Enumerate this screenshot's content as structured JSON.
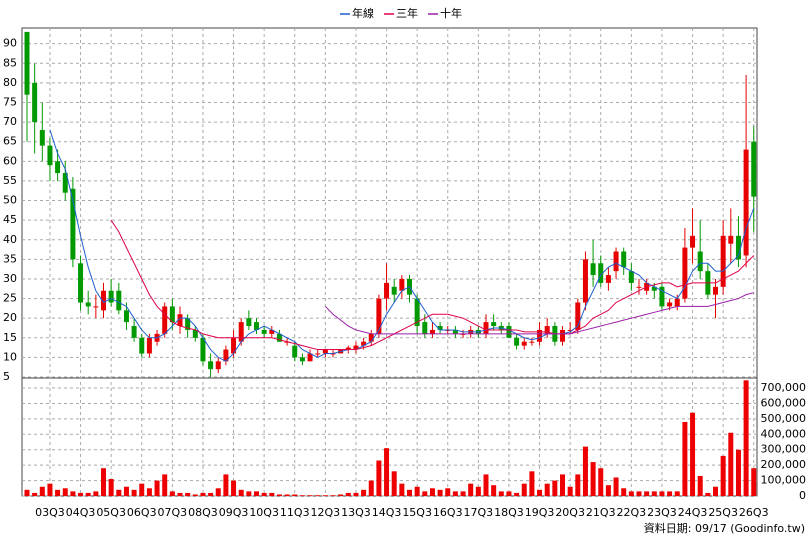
{
  "chart_data": {
    "type": "candlestick",
    "categories": [
      null,
      null,
      null,
      "03Q3",
      null,
      null,
      null,
      "04Q3",
      null,
      null,
      null,
      "05Q3",
      null,
      null,
      null,
      "06Q3",
      null,
      null,
      null,
      "07Q3",
      null,
      null,
      null,
      "08Q3",
      null,
      null,
      null,
      "09Q3",
      null,
      null,
      null,
      "10Q3",
      null,
      null,
      null,
      "11Q3",
      null,
      null,
      null,
      "12Q3",
      null,
      null,
      null,
      "13Q3",
      null,
      null,
      null,
      "14Q3",
      null,
      null,
      null,
      "15Q3",
      null,
      null,
      null,
      "16Q3",
      null,
      null,
      null,
      "17Q3",
      null,
      null,
      null,
      "18Q3",
      null,
      null,
      null,
      "19Q3",
      null,
      null,
      null,
      "20Q3",
      null,
      null,
      null,
      "21Q3",
      null,
      null,
      null,
      "22Q3",
      null,
      null,
      null,
      "23Q3",
      null,
      null,
      null,
      "24Q3",
      null,
      null,
      null,
      "25Q3",
      null,
      null,
      null,
      "26Q3"
    ],
    "open": [
      93,
      80,
      68,
      64,
      60,
      57,
      53,
      34,
      24,
      23,
      22,
      27,
      27,
      22,
      18,
      15,
      11,
      14,
      16,
      23,
      18,
      20,
      17,
      15,
      9,
      7,
      9,
      11,
      14,
      20,
      19,
      17,
      16,
      16,
      14,
      13,
      10,
      9,
      11,
      11,
      11,
      11,
      12,
      12,
      13,
      14,
      16,
      25,
      28,
      27,
      30,
      25,
      19,
      16,
      18,
      17,
      17,
      16,
      16,
      17,
      16,
      19,
      18,
      18,
      15,
      13,
      14,
      14,
      16,
      18,
      14,
      17,
      17,
      24,
      34,
      34,
      29,
      32,
      37,
      32,
      28,
      27,
      28,
      28,
      23,
      23,
      25,
      38,
      37,
      32,
      26,
      28,
      39,
      41,
      36,
      65
    ],
    "high": [
      93,
      85,
      75,
      66,
      63,
      60,
      56,
      36,
      27,
      26,
      29,
      30,
      29,
      24,
      20,
      16,
      16,
      17,
      24,
      25,
      23,
      21,
      18,
      16,
      11,
      10,
      13,
      17,
      20,
      22,
      20,
      18,
      18,
      17,
      15,
      14,
      11,
      12,
      12,
      12,
      12,
      12,
      13,
      14,
      15,
      17,
      26,
      34,
      30,
      31,
      31,
      26,
      21,
      19,
      19,
      18,
      18,
      17,
      18,
      18,
      21,
      21,
      19,
      19,
      16,
      15,
      15,
      19,
      20,
      19,
      18,
      19,
      25,
      37,
      40,
      36,
      33,
      38,
      38,
      34,
      30,
      30,
      29,
      29,
      25,
      26,
      43,
      48,
      45,
      34,
      30,
      45,
      48,
      46,
      82,
      69
    ],
    "low": [
      65,
      62,
      60,
      55,
      55,
      50,
      33,
      22,
      21,
      20,
      20,
      23,
      21,
      17,
      14,
      10,
      10,
      13,
      15,
      17,
      16,
      15,
      14,
      8,
      5,
      6,
      8,
      10,
      13,
      17,
      16,
      15,
      15,
      14,
      13,
      9,
      8,
      9,
      10,
      10,
      10,
      11,
      11,
      11,
      12,
      13,
      15,
      22,
      24,
      25,
      24,
      16,
      15,
      15,
      16,
      16,
      15,
      15,
      15,
      15,
      15,
      17,
      16,
      15,
      12,
      12,
      13,
      13,
      15,
      13,
      13,
      16,
      16,
      22,
      28,
      28,
      27,
      30,
      31,
      27,
      26,
      26,
      25,
      22,
      22,
      22,
      24,
      34,
      30,
      25,
      20,
      26,
      34,
      33,
      33,
      42
    ],
    "close": [
      77,
      70,
      64,
      59,
      57,
      52,
      35,
      24,
      23,
      23,
      27,
      24,
      22,
      19,
      15,
      11,
      15,
      16,
      23,
      19,
      21,
      17,
      15,
      9,
      7,
      9,
      12,
      15,
      19,
      18,
      17,
      16,
      17,
      14,
      14,
      10,
      9,
      11,
      11,
      12,
      11,
      12,
      12.5,
      13,
      14,
      16,
      25,
      29,
      26,
      30,
      26,
      18,
      16,
      17,
      17,
      17,
      16,
      16,
      17,
      16,
      19,
      18,
      17,
      15,
      13,
      14,
      14,
      17,
      18,
      14,
      17,
      17,
      24,
      35,
      31,
      29,
      31,
      37,
      33,
      29,
      28,
      29,
      27,
      23,
      24,
      25,
      38,
      41,
      32,
      26,
      28,
      41,
      41,
      35,
      63,
      51
    ],
    "up_color": "#e60000",
    "down_color": "#009900",
    "series": [
      {
        "name": "年線",
        "color": "#1f5fd0",
        "values": [
          null,
          null,
          null,
          68,
          62,
          58,
          50,
          41,
          33,
          27,
          24,
          25,
          24,
          23,
          20,
          17,
          15,
          15,
          16,
          18,
          20,
          20,
          18,
          15,
          12,
          10,
          9,
          11,
          14,
          16,
          17,
          18,
          17,
          16,
          15,
          14,
          12,
          11,
          10,
          11,
          11,
          11.5,
          12,
          12,
          13,
          14,
          17,
          21,
          24,
          27,
          28,
          25,
          22,
          19,
          17,
          17,
          17,
          16.5,
          16.5,
          16.5,
          17,
          17.5,
          17.5,
          17,
          16,
          15,
          14.5,
          15,
          16,
          16,
          16,
          16.5,
          18,
          23,
          27,
          31,
          33,
          34,
          33,
          32,
          31,
          29,
          28,
          27,
          26,
          25,
          28,
          32,
          34,
          34,
          32,
          32,
          34,
          36,
          43,
          48
        ]
      },
      {
        "name": "三年",
        "color": "#e0004a",
        "values": [
          null,
          null,
          null,
          null,
          null,
          null,
          null,
          null,
          null,
          null,
          null,
          45,
          42,
          38,
          34,
          30,
          26,
          23,
          21,
          19,
          18,
          17.5,
          17,
          16,
          15.5,
          15,
          15,
          15,
          15,
          15,
          15,
          15,
          15,
          14.5,
          14,
          13.5,
          13,
          12.5,
          12,
          12,
          12,
          12,
          12,
          12,
          12.5,
          13,
          14,
          15,
          16,
          17,
          18,
          19,
          20,
          21,
          21,
          21,
          20.5,
          20,
          19,
          18,
          17,
          17,
          17,
          17,
          17,
          16.5,
          16.5,
          16.5,
          16.5,
          16,
          16,
          16,
          17,
          18,
          20,
          21,
          22,
          24,
          25,
          26,
          27,
          28,
          28.5,
          29,
          29,
          28,
          28.5,
          29,
          29,
          29,
          29,
          30,
          31,
          32,
          34,
          36
        ]
      },
      {
        "name": "十年",
        "color": "#9b1fa8",
        "values": [
          null,
          null,
          null,
          null,
          null,
          null,
          null,
          null,
          null,
          null,
          null,
          null,
          null,
          null,
          null,
          null,
          null,
          null,
          null,
          null,
          null,
          null,
          null,
          null,
          null,
          null,
          null,
          null,
          null,
          null,
          null,
          null,
          null,
          null,
          null,
          null,
          null,
          null,
          null,
          23,
          21,
          19.5,
          18,
          17,
          16.5,
          16,
          16,
          16,
          16,
          16,
          16,
          16,
          16,
          16,
          16,
          16,
          16,
          16,
          16,
          16,
          16,
          16,
          16,
          16,
          16,
          16,
          16,
          16,
          16,
          16,
          16,
          16,
          16.5,
          17,
          17.5,
          18,
          18.5,
          19,
          19.5,
          20,
          20.5,
          21,
          21.5,
          22,
          22.5,
          23,
          23,
          23,
          23,
          23,
          23.5,
          24,
          24.5,
          25,
          26,
          26.5
        ]
      }
    ],
    "ylim": [
      5,
      94
    ],
    "yticks": [
      5,
      10,
      15,
      20,
      25,
      30,
      35,
      40,
      45,
      50,
      55,
      60,
      65,
      70,
      75,
      80,
      85,
      90
    ],
    "grid": true,
    "legend": "top",
    "volume": {
      "color": "#ee0000",
      "values": [
        40000,
        20000,
        60000,
        80000,
        40000,
        50000,
        30000,
        20000,
        20000,
        30000,
        180000,
        110000,
        40000,
        60000,
        40000,
        80000,
        50000,
        100000,
        140000,
        30000,
        20000,
        20000,
        10000,
        20000,
        20000,
        50000,
        140000,
        100000,
        40000,
        30000,
        30000,
        20000,
        20000,
        10000,
        10000,
        10000,
        5000,
        5000,
        5000,
        5000,
        5000,
        10000,
        20000,
        20000,
        40000,
        100000,
        230000,
        310000,
        160000,
        80000,
        40000,
        60000,
        30000,
        50000,
        40000,
        50000,
        30000,
        30000,
        80000,
        60000,
        140000,
        70000,
        30000,
        30000,
        20000,
        80000,
        160000,
        40000,
        80000,
        100000,
        140000,
        60000,
        140000,
        320000,
        220000,
        180000,
        70000,
        120000,
        50000,
        30000,
        30000,
        30000,
        30000,
        30000,
        30000,
        30000,
        480000,
        540000,
        130000,
        20000,
        60000,
        260000,
        410000,
        300000,
        750000,
        180000
      ],
      "ylim": [
        0,
        765000
      ],
      "yticks": [
        {
          "value": 0,
          "label": "0"
        },
        {
          "value": 100000,
          "label": "100,000"
        },
        {
          "value": 200000,
          "label": "200,000"
        },
        {
          "value": 300000,
          "label": "300,000"
        },
        {
          "value": 400000,
          "label": "400,000"
        },
        {
          "value": 500000,
          "label": "500,000"
        },
        {
          "value": 600000,
          "label": "600,000"
        },
        {
          "value": 700000,
          "label": "700,000"
        }
      ]
    },
    "source_note": "資料日期: 09/17 (Goodinfo.tw)"
  }
}
